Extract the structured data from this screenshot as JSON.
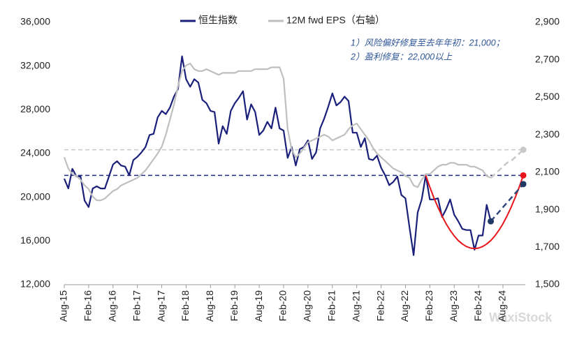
{
  "chart_data": {
    "type": "line",
    "legend": "top",
    "categories": [
      "Aug-15",
      null,
      null,
      null,
      null,
      null,
      "Feb-16",
      null,
      null,
      null,
      null,
      null,
      "Aug-16",
      null,
      null,
      null,
      null,
      null,
      "Feb-17",
      null,
      null,
      null,
      null,
      null,
      "Aug-17",
      null,
      null,
      null,
      null,
      null,
      "Feb-18",
      null,
      null,
      null,
      null,
      null,
      "Aug-18",
      null,
      null,
      null,
      null,
      null,
      "Feb-19",
      null,
      null,
      null,
      null,
      null,
      "Aug-19",
      null,
      null,
      null,
      null,
      null,
      "Feb-20",
      null,
      null,
      null,
      null,
      null,
      "Aug-20",
      null,
      null,
      null,
      null,
      null,
      "Feb-21",
      null,
      null,
      null,
      null,
      null,
      "Aug-21",
      null,
      null,
      null,
      null,
      null,
      "Feb-22",
      null,
      null,
      null,
      null,
      null,
      "Aug-22",
      null,
      null,
      null,
      null,
      null,
      "Feb-23",
      null,
      null,
      null,
      null,
      null,
      "Aug-23",
      null,
      null,
      null,
      null,
      null,
      "Feb-24",
      null,
      null,
      null,
      null,
      null,
      "Aug-24",
      null,
      null,
      null,
      null,
      null
    ],
    "ylim": [
      12000,
      36000
    ],
    "yticks": [
      {
        "value": 12000,
        "label": "12,000"
      },
      {
        "value": 16000,
        "label": "16,000"
      },
      {
        "value": 20000,
        "label": "20,000"
      },
      {
        "value": 24000,
        "label": "24,000"
      },
      {
        "value": 28000,
        "label": "28,000"
      },
      {
        "value": 32000,
        "label": "32,000"
      },
      {
        "value": 36000,
        "label": "36,000"
      }
    ],
    "y2lim": [
      1500,
      2900
    ],
    "y2ticks": [
      {
        "value": 1500,
        "label": "1,500"
      },
      {
        "value": 1700,
        "label": "1,700"
      },
      {
        "value": 1900,
        "label": "1,900"
      },
      {
        "value": 2100,
        "label": "2,100"
      },
      {
        "value": 2300,
        "label": "2,300"
      },
      {
        "value": 2500,
        "label": "2,500"
      },
      {
        "value": 2700,
        "label": "2,700"
      },
      {
        "value": 2900,
        "label": "2,900"
      }
    ],
    "reference_lines": [
      {
        "value": 22000,
        "axis": "y",
        "color": "#1f2a80"
      },
      {
        "value": 2220,
        "axis": "y2",
        "color": "#c8c8c8"
      }
    ],
    "series": [
      {
        "name": "恒生指数",
        "color": "#1a1f7a",
        "width": 2.2,
        "values": [
          21700,
          20800,
          22600,
          21900,
          21900,
          19700,
          19100,
          20800,
          21000,
          20800,
          20800,
          21900,
          23000,
          23300,
          22900,
          22800,
          22000,
          23400,
          23700,
          24100,
          24600,
          25700,
          25800,
          27300,
          27900,
          27600,
          28200,
          29200,
          29900,
          32900,
          30800,
          30100,
          30800,
          30500,
          28900,
          28600,
          27900,
          27800,
          24900,
          26500,
          25800,
          27900,
          28600,
          29100,
          29700,
          27100,
          28500,
          27800,
          25700,
          26100,
          26900,
          26300,
          28200,
          26300,
          26100,
          23600,
          24600,
          22900,
          24400,
          24600,
          25200,
          23500,
          24100,
          26300,
          27200,
          28300,
          29500,
          28400,
          28700,
          29200,
          28800,
          25900,
          25900,
          24600,
          25400,
          23500,
          23400,
          23800,
          22700,
          22000,
          21100,
          21400,
          21900,
          20200,
          19900,
          17200,
          14700,
          18600,
          19800,
          22000,
          19800,
          19800,
          19900,
          18200,
          18900,
          19800,
          18400,
          17800,
          17100,
          17000,
          17000,
          15200,
          16500,
          16500,
          19300,
          17800,
          null,
          null,
          null,
          null,
          null,
          null,
          null,
          null
        ]
      },
      {
        "name": "12M fwd EPS（右轴）",
        "color": "#bfbfbf",
        "width": 2.2,
        "axis": "y2",
        "values": [
          2180,
          2120,
          2090,
          2080,
          2060,
          2030,
          2010,
          1970,
          1950,
          1950,
          1960,
          1980,
          2000,
          2010,
          2030,
          2040,
          2050,
          2060,
          2070,
          2090,
          2110,
          2140,
          2170,
          2200,
          2237,
          2300,
          2380,
          2460,
          2560,
          2640,
          2670,
          2680,
          2650,
          2640,
          2640,
          2650,
          2640,
          2630,
          2620,
          2630,
          2630,
          2630,
          2630,
          2640,
          2640,
          2640,
          2640,
          2650,
          2650,
          2650,
          2650,
          2660,
          2660,
          2660,
          2600,
          2330,
          2220,
          2180,
          2200,
          2230,
          2260,
          2270,
          2280,
          2290,
          2300,
          2290,
          2270,
          2280,
          2290,
          2300,
          2330,
          2350,
          2360,
          2330,
          2300,
          2270,
          2230,
          2200,
          2180,
          2160,
          2140,
          2120,
          2110,
          2100,
          2080,
          2070,
          2030,
          2020,
          2060,
          2090,
          2090,
          2110,
          2130,
          2140,
          2140,
          2150,
          2150,
          2140,
          2140,
          2140,
          2130,
          2130,
          2120,
          2110,
          2080,
          2070,
          null,
          null,
          null,
          null,
          null,
          null,
          null,
          null
        ]
      },
      {
        "color": "#e8141b",
        "width": 2,
        "end_marker": true,
        "values": [
          null,
          null,
          null,
          null,
          null,
          null,
          null,
          null,
          null,
          null,
          null,
          null,
          null,
          null,
          null,
          null,
          null,
          null,
          null,
          null,
          null,
          null,
          null,
          null,
          null,
          null,
          null,
          null,
          null,
          null,
          null,
          null,
          null,
          null,
          null,
          null,
          null,
          null,
          null,
          null,
          null,
          null,
          null,
          null,
          null,
          null,
          null,
          null,
          null,
          null,
          null,
          null,
          null,
          null,
          null,
          null,
          null,
          null,
          null,
          null,
          null,
          null,
          null,
          null,
          null,
          null,
          null,
          null,
          null,
          null,
          null,
          null,
          null,
          null,
          null,
          null,
          null,
          null,
          null,
          null,
          null,
          null,
          null,
          null,
          null,
          null,
          null,
          null,
          null,
          22000,
          20930,
          19950,
          19070,
          18280,
          17580,
          16970,
          16460,
          16040,
          15720,
          15490,
          15350,
          15300,
          15350,
          15490,
          15720,
          16040,
          16460,
          16970,
          17580,
          18280,
          19070,
          19950,
          20930,
          22000
        ]
      },
      {
        "color": "#2f4a7c",
        "width": 2.5,
        "dashed": true,
        "start_marker": true,
        "end_marker": true,
        "values": [
          null,
          null,
          null,
          null,
          null,
          null,
          null,
          null,
          null,
          null,
          null,
          null,
          null,
          null,
          null,
          null,
          null,
          null,
          null,
          null,
          null,
          null,
          null,
          null,
          null,
          null,
          null,
          null,
          null,
          null,
          null,
          null,
          null,
          null,
          null,
          null,
          null,
          null,
          null,
          null,
          null,
          null,
          null,
          null,
          null,
          null,
          null,
          null,
          null,
          null,
          null,
          null,
          null,
          null,
          null,
          null,
          null,
          null,
          null,
          null,
          null,
          null,
          null,
          null,
          null,
          null,
          null,
          null,
          null,
          null,
          null,
          null,
          null,
          null,
          null,
          null,
          null,
          null,
          null,
          null,
          null,
          null,
          null,
          null,
          null,
          null,
          null,
          null,
          null,
          null,
          null,
          null,
          null,
          null,
          null,
          null,
          null,
          null,
          null,
          null,
          null,
          null,
          null,
          null,
          null,
          17800,
          18230,
          18650,
          19080,
          19500,
          19930,
          20350,
          20780,
          21200
        ]
      },
      {
        "color": "#c8c8c8",
        "width": 2.5,
        "dashed": true,
        "axis": "y2",
        "end_marker": true,
        "values": [
          null,
          null,
          null,
          null,
          null,
          null,
          null,
          null,
          null,
          null,
          null,
          null,
          null,
          null,
          null,
          null,
          null,
          null,
          null,
          null,
          null,
          null,
          null,
          null,
          null,
          null,
          null,
          null,
          null,
          null,
          null,
          null,
          null,
          null,
          null,
          null,
          null,
          null,
          null,
          null,
          null,
          null,
          null,
          null,
          null,
          null,
          null,
          null,
          null,
          null,
          null,
          null,
          null,
          null,
          null,
          null,
          null,
          null,
          null,
          null,
          null,
          null,
          null,
          null,
          null,
          null,
          null,
          null,
          null,
          null,
          null,
          null,
          null,
          null,
          null,
          null,
          null,
          null,
          null,
          null,
          null,
          null,
          null,
          null,
          null,
          null,
          null,
          null,
          null,
          null,
          null,
          null,
          null,
          null,
          null,
          null,
          null,
          null,
          null,
          null,
          null,
          null,
          null,
          null,
          null,
          2070,
          2090,
          2110,
          2130,
          2150,
          2160,
          2180,
          2200,
          2220
        ]
      }
    ],
    "annotations": [
      "1）风险偏好修复至去年年初：21,000；",
      "2）盈利修复：22,000以上"
    ],
    "watermark": "WaxiStock"
  }
}
